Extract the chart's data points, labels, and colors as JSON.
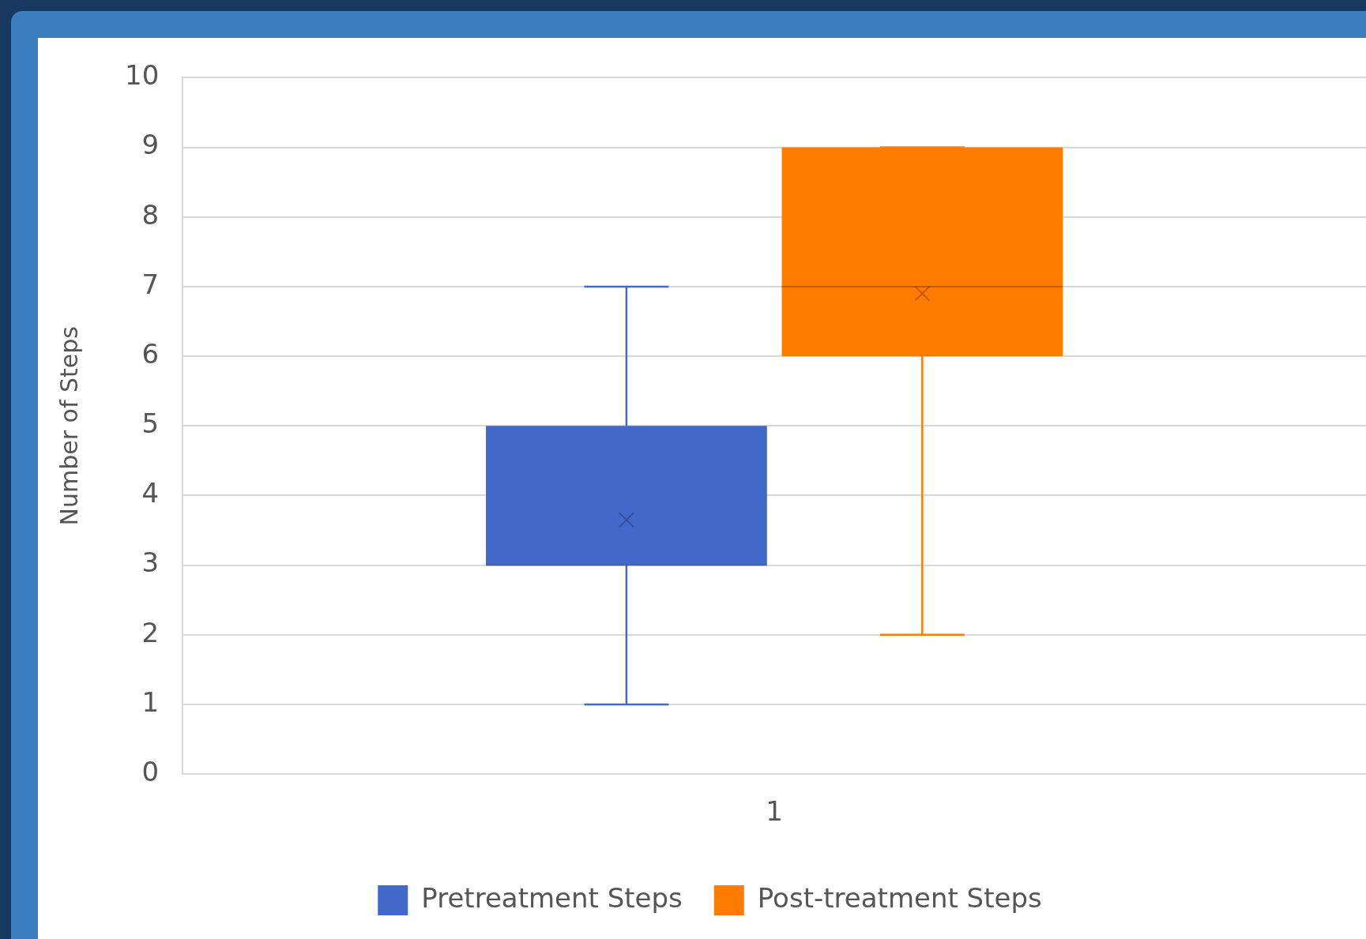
{
  "chart_data": {
    "type": "box",
    "ylabel": "Number of Steps",
    "categories": [
      "1"
    ],
    "ylim": [
      0,
      10
    ],
    "yticks": [
      0,
      1,
      2,
      3,
      4,
      5,
      6,
      7,
      8,
      9,
      10
    ],
    "grid": "y",
    "legend": "bottom",
    "series": [
      {
        "name": "Pretreatment Steps",
        "color": "#4169c9",
        "boxes": [
          {
            "low": 1,
            "q1": 3,
            "median": 3,
            "q3": 5,
            "high": 7,
            "mean": 3.65
          }
        ]
      },
      {
        "name": "Post-treatment Steps",
        "color": "#ff7c00",
        "boxes": [
          {
            "low": 2,
            "q1": 6,
            "median": 7,
            "q3": 9,
            "high": 9,
            "mean": 6.9
          }
        ]
      }
    ]
  }
}
